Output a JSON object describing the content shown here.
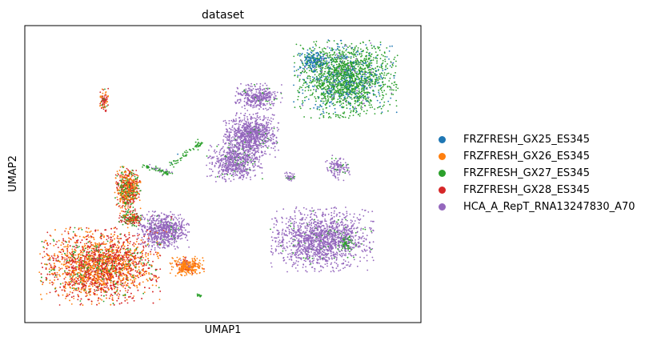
{
  "chart_data": {
    "type": "scatter",
    "title": "dataset",
    "xlabel": "UMAP1",
    "ylabel": "UMAP2",
    "xlim": [
      0,
      100
    ],
    "ylim": [
      0,
      100
    ],
    "legend_position": "right",
    "grid": false,
    "ticks": false,
    "series": [
      {
        "name": "FRZFRESH_GX25_ES345",
        "color": "#1f77b4"
      },
      {
        "name": "FRZFRESH_GX26_ES345",
        "color": "#ff7f0e"
      },
      {
        "name": "FRZFRESH_GX27_ES345",
        "color": "#2ca02c"
      },
      {
        "name": "FRZFRESH_GX28_ES345",
        "color": "#d62728"
      },
      {
        "name": "HCA_A_RepT_RNA13247830_A70",
        "color": "#9467bd"
      }
    ],
    "clusters": [
      {
        "cx": 81,
        "cy": 82,
        "rx": 12,
        "ry": 12,
        "n": 1900,
        "mix": [
          0.22,
          0,
          0.74,
          0,
          0.04
        ]
      },
      {
        "cx": 73,
        "cy": 88,
        "rx": 3.5,
        "ry": 3.5,
        "n": 200,
        "mix": [
          0.75,
          0,
          0.2,
          0,
          0.05
        ]
      },
      {
        "cx": 59,
        "cy": 76,
        "rx": 5.5,
        "ry": 4.3,
        "n": 350,
        "mix": [
          0,
          0,
          0.04,
          0,
          0.96
        ]
      },
      {
        "cx": 57,
        "cy": 63,
        "rx": 6.5,
        "ry": 7,
        "n": 900,
        "mix": [
          0,
          0,
          0.04,
          0,
          0.96
        ]
      },
      {
        "cx": 53,
        "cy": 54,
        "rx": 6.5,
        "ry": 6,
        "n": 600,
        "mix": [
          0,
          0,
          0.06,
          0,
          0.94
        ]
      },
      {
        "cx": 67,
        "cy": 49,
        "rx": 1.5,
        "ry": 1.5,
        "n": 40,
        "mix": [
          0,
          0,
          0.15,
          0,
          0.85
        ]
      },
      {
        "cx": 79,
        "cy": 52,
        "rx": 3,
        "ry": 4,
        "n": 120,
        "mix": [
          0,
          0,
          0.12,
          0,
          0.88
        ]
      },
      {
        "cx": 75,
        "cy": 28,
        "rx": 12,
        "ry": 10,
        "n": 1500,
        "mix": [
          0,
          0,
          0.05,
          0,
          0.95
        ]
      },
      {
        "cx": 81,
        "cy": 27,
        "rx": 2,
        "ry": 3,
        "n": 80,
        "mix": [
          0,
          0,
          0.9,
          0,
          0.1
        ]
      },
      {
        "cx": 35,
        "cy": 31,
        "rx": 6,
        "ry": 6,
        "n": 700,
        "mix": [
          0,
          0.01,
          0.02,
          0.01,
          0.96
        ]
      },
      {
        "cx": 19,
        "cy": 19,
        "rx": 14,
        "ry": 12,
        "n": 3200,
        "mix": [
          0,
          0.4,
          0.1,
          0.5,
          0
        ]
      },
      {
        "cx": 41,
        "cy": 19,
        "rx": 4,
        "ry": 3,
        "n": 300,
        "mix": [
          0,
          0.9,
          0,
          0.08,
          0.02
        ]
      },
      {
        "cx": 26,
        "cy": 45,
        "rx": 3,
        "ry": 7,
        "n": 600,
        "mix": [
          0,
          0.45,
          0.25,
          0.3,
          0
        ]
      },
      {
        "cx": 27,
        "cy": 35,
        "rx": 3,
        "ry": 2.5,
        "n": 200,
        "mix": [
          0,
          0.2,
          0.4,
          0.4,
          0
        ]
      },
      {
        "cx": 20,
        "cy": 75,
        "rx": 1,
        "ry": 4,
        "n": 80,
        "mix": [
          0,
          0.3,
          0.1,
          0.6,
          0
        ]
      },
      {
        "cx": 44,
        "cy": 9,
        "rx": 1,
        "ry": 0.7,
        "n": 15,
        "mix": [
          0,
          0,
          1,
          0,
          0
        ]
      }
    ],
    "strands": [
      {
        "x1": 30,
        "y1": 53,
        "x2": 37,
        "y2": 50,
        "n": 70,
        "mix": [
          0,
          0,
          0.8,
          0,
          0.2
        ]
      },
      {
        "x1": 37,
        "y1": 53,
        "x2": 45,
        "y2": 61,
        "n": 60,
        "mix": [
          0.05,
          0,
          0.95,
          0,
          0
        ]
      }
    ]
  },
  "legend": [
    {
      "label": "FRZFRESH_GX25_ES345",
      "color": "#1f77b4"
    },
    {
      "label": "FRZFRESH_GX26_ES345",
      "color": "#ff7f0e"
    },
    {
      "label": "FRZFRESH_GX27_ES345",
      "color": "#2ca02c"
    },
    {
      "label": "FRZFRESH_GX28_ES345",
      "color": "#d62728"
    },
    {
      "label": "HCA_A_RepT_RNA13247830_A70",
      "color": "#9467bd"
    }
  ]
}
